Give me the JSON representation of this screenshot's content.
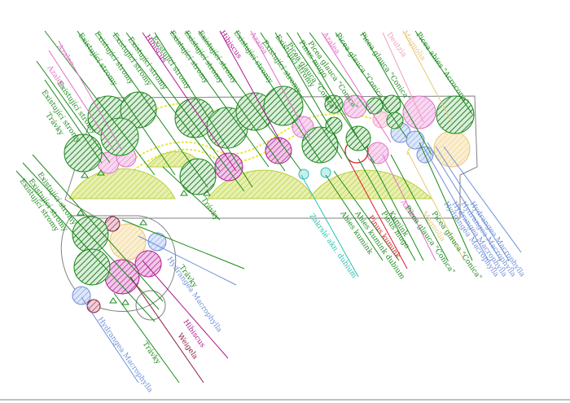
{
  "colors": {
    "tree_green": "#1a8a1a",
    "tree_dark": "#0d5e0d",
    "azalea": "#e070c8",
    "hibiscus": "#b01890",
    "hydrangea": "#6f8fd8",
    "magnolia": "#e8c87a",
    "deutzia": "#f0a0c0",
    "grass": "#b8d040",
    "path_yellow": "#e8e840",
    "weigela": "#8a1a3a",
    "abies_teal": "#28c0b0",
    "pinus_red": "#e01828",
    "outline": "#808080"
  },
  "labels": {
    "existing_trees": "Existující stromy",
    "azalea": "Azalea",
    "grass": "Trávky",
    "hibiscus": "Hibiscus",
    "picea_conica": "Picea glauca \"Conica\"",
    "pinus_mugo": "Pinus mugo",
    "deutzia": "Deutzia",
    "magnolia": "Magnolia",
    "abies_acrocona": "Picea abies \"Acrocona\"",
    "hydrangea": "Hydrangea Macrophylla",
    "abies_kumink": "Abies kumink",
    "pinus_kumink": "Pinus kumink",
    "kumink": "Kumink",
    "abies_dubium": "Zakrslé akn. dubium",
    "abies_long": "Abies kumink dubium",
    "weigela": "Weigela"
  }
}
